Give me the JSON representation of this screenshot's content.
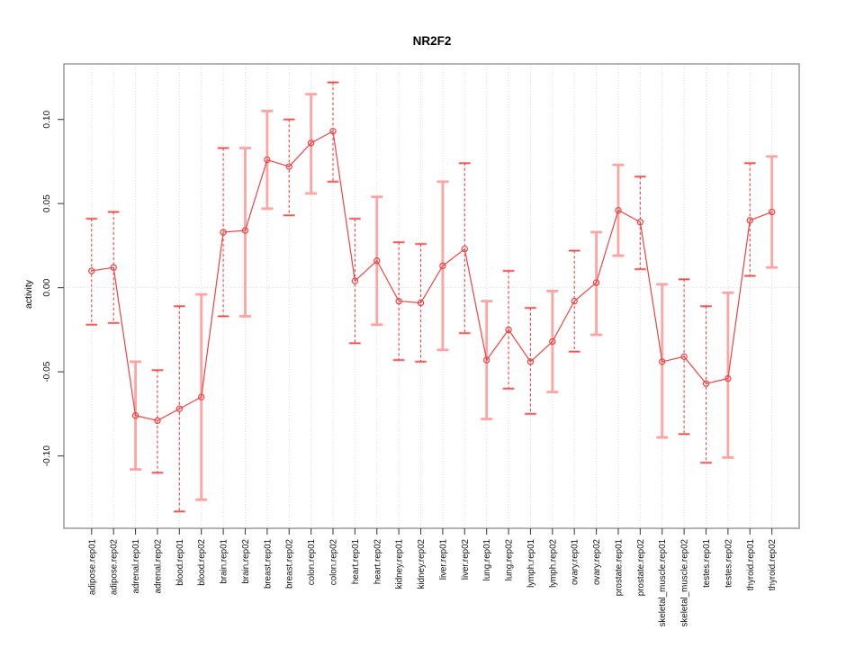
{
  "chart_data": {
    "type": "line",
    "title": "NR2F2",
    "xlabel": "",
    "ylabel": "activity",
    "ylim": [
      -0.143,
      0.133
    ],
    "ytick_values": [
      -0.1,
      -0.05,
      0.0,
      0.05,
      0.1
    ],
    "ytick_labels": [
      "-0.10",
      "-0.05",
      "0.00",
      "0.05",
      "0.10"
    ],
    "grid": {
      "vertical_dotted_per_category": true,
      "horizontal_zero_line_dotted": true
    },
    "legend_position": "none",
    "marker": "open-circle",
    "categories": [
      "adipose.rep01",
      "adipose.rep02",
      "adrenal.rep01",
      "adrenal.rep02",
      "blood.rep01",
      "blood.rep02",
      "brain.rep01",
      "brain.rep02",
      "breast.rep01",
      "breast.rep02",
      "colon.rep01",
      "colon.rep02",
      "heart.rep01",
      "heart.rep02",
      "kidney.rep01",
      "kidney.rep02",
      "liver.rep01",
      "liver.rep02",
      "lung.rep01",
      "lung.rep02",
      "lymph.rep01",
      "lymph.rep02",
      "ovary.rep01",
      "ovary.rep02",
      "prostate.rep01",
      "prostate.rep02",
      "skeletal_muscle.rep01",
      "skeletal_muscle.rep02",
      "testes.rep01",
      "testes.rep02",
      "thyroid.rep01",
      "thyroid.rep02"
    ],
    "series": [
      {
        "name": "NR2F2",
        "points": [
          {
            "label": "adipose.rep01",
            "value": 0.01,
            "lo": -0.022,
            "hi": 0.041,
            "bar_style": "dashed"
          },
          {
            "label": "adipose.rep02",
            "value": 0.012,
            "lo": -0.021,
            "hi": 0.045,
            "bar_style": "dashed"
          },
          {
            "label": "adrenal.rep01",
            "value": -0.076,
            "lo": -0.108,
            "hi": -0.044,
            "bar_style": "solid"
          },
          {
            "label": "adrenal.rep02",
            "value": -0.079,
            "lo": -0.11,
            "hi": -0.049,
            "bar_style": "dashed"
          },
          {
            "label": "blood.rep01",
            "value": -0.072,
            "lo": -0.133,
            "hi": -0.011,
            "bar_style": "dashed"
          },
          {
            "label": "blood.rep02",
            "value": -0.065,
            "lo": -0.126,
            "hi": -0.004,
            "bar_style": "solid"
          },
          {
            "label": "brain.rep01",
            "value": 0.033,
            "lo": -0.017,
            "hi": 0.083,
            "bar_style": "dashed"
          },
          {
            "label": "brain.rep02",
            "value": 0.034,
            "lo": -0.017,
            "hi": 0.083,
            "bar_style": "solid"
          },
          {
            "label": "breast.rep01",
            "value": 0.076,
            "lo": 0.047,
            "hi": 0.105,
            "bar_style": "solid"
          },
          {
            "label": "breast.rep02",
            "value": 0.072,
            "lo": 0.043,
            "hi": 0.1,
            "bar_style": "dashed"
          },
          {
            "label": "colon.rep01",
            "value": 0.086,
            "lo": 0.056,
            "hi": 0.115,
            "bar_style": "solid"
          },
          {
            "label": "colon.rep02",
            "value": 0.093,
            "lo": 0.063,
            "hi": 0.122,
            "bar_style": "dashed"
          },
          {
            "label": "heart.rep01",
            "value": 0.004,
            "lo": -0.033,
            "hi": 0.041,
            "bar_style": "dashed"
          },
          {
            "label": "heart.rep02",
            "value": 0.016,
            "lo": -0.022,
            "hi": 0.054,
            "bar_style": "solid"
          },
          {
            "label": "kidney.rep01",
            "value": -0.008,
            "lo": -0.043,
            "hi": 0.027,
            "bar_style": "dashed"
          },
          {
            "label": "kidney.rep02",
            "value": -0.009,
            "lo": -0.044,
            "hi": 0.026,
            "bar_style": "dashed"
          },
          {
            "label": "liver.rep01",
            "value": 0.013,
            "lo": -0.037,
            "hi": 0.063,
            "bar_style": "solid"
          },
          {
            "label": "liver.rep02",
            "value": 0.023,
            "lo": -0.027,
            "hi": 0.074,
            "bar_style": "dashed"
          },
          {
            "label": "lung.rep01",
            "value": -0.043,
            "lo": -0.078,
            "hi": -0.008,
            "bar_style": "solid"
          },
          {
            "label": "lung.rep02",
            "value": -0.025,
            "lo": -0.06,
            "hi": 0.01,
            "bar_style": "dashed"
          },
          {
            "label": "lymph.rep01",
            "value": -0.044,
            "lo": -0.075,
            "hi": -0.012,
            "bar_style": "dashed"
          },
          {
            "label": "lymph.rep02",
            "value": -0.032,
            "lo": -0.062,
            "hi": -0.002,
            "bar_style": "solid"
          },
          {
            "label": "ovary.rep01",
            "value": -0.008,
            "lo": -0.038,
            "hi": 0.022,
            "bar_style": "dashed"
          },
          {
            "label": "ovary.rep02",
            "value": 0.003,
            "lo": -0.028,
            "hi": 0.033,
            "bar_style": "solid"
          },
          {
            "label": "prostate.rep01",
            "value": 0.046,
            "lo": 0.019,
            "hi": 0.073,
            "bar_style": "solid"
          },
          {
            "label": "prostate.rep02",
            "value": 0.039,
            "lo": 0.011,
            "hi": 0.066,
            "bar_style": "dashed"
          },
          {
            "label": "skeletal_muscle.rep01",
            "value": -0.044,
            "lo": -0.089,
            "hi": 0.002,
            "bar_style": "solid"
          },
          {
            "label": "skeletal_muscle.rep02",
            "value": -0.041,
            "lo": -0.087,
            "hi": 0.005,
            "bar_style": "dashed"
          },
          {
            "label": "testes.rep01",
            "value": -0.057,
            "lo": -0.104,
            "hi": -0.011,
            "bar_style": "dashed"
          },
          {
            "label": "testes.rep02",
            "value": -0.054,
            "lo": -0.101,
            "hi": -0.003,
            "bar_style": "solid"
          },
          {
            "label": "thyroid.rep01",
            "value": 0.04,
            "lo": 0.007,
            "hi": 0.074,
            "bar_style": "dashed"
          },
          {
            "label": "thyroid.rep02",
            "value": 0.045,
            "lo": 0.012,
            "hi": 0.078,
            "bar_style": "solid"
          }
        ]
      }
    ]
  },
  "colors": {
    "line": "#ee4444",
    "bar_light": "#ffa3a3",
    "grid": "#d9d9d9",
    "zero_line": "#dcdcdc",
    "frame": "#8a8a8a",
    "tick": "#444444",
    "text": "#111111",
    "background": "#ffffff"
  }
}
